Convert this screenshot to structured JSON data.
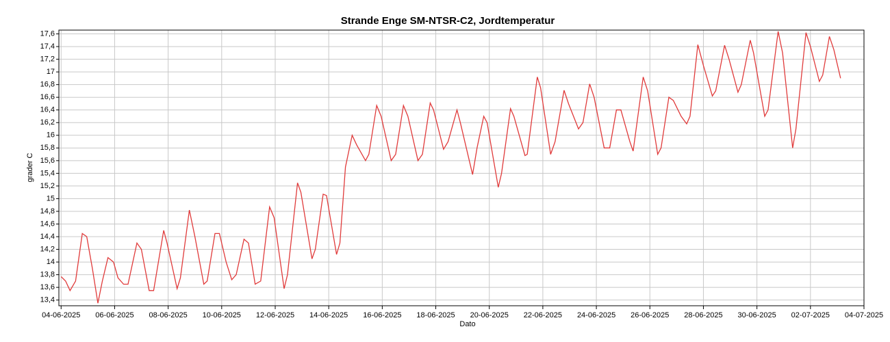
{
  "chart_data": {
    "type": "line",
    "title": "Strande Enge SM-NTSR-C2, Jordtemperatur",
    "x_label": "Dato",
    "y_label": "grader C",
    "grid": true,
    "x": [
      "2025-06-04T00:00",
      "2025-06-04T04:00",
      "2025-06-04T08:00",
      "2025-06-04T13:00",
      "2025-06-04T19:00",
      "2025-06-04T23:00",
      "2025-06-05T04:00",
      "2025-06-05T09:00",
      "2025-06-05T13:00",
      "2025-06-05T18:00",
      "2025-06-05T23:00",
      "2025-06-06T03:00",
      "2025-06-06T08:00",
      "2025-06-06T12:00",
      "2025-06-06T20:00",
      "2025-06-07T00:00",
      "2025-06-07T07:00",
      "2025-06-07T11:00",
      "2025-06-07T20:00",
      "2025-06-07T23:00",
      "2025-06-08T08:00",
      "2025-06-08T11:00",
      "2025-06-08T19:00",
      "2025-06-09T00:00",
      "2025-06-09T08:00",
      "2025-06-09T11:00",
      "2025-06-09T18:00",
      "2025-06-09T22:00",
      "2025-06-10T04:00",
      "2025-06-10T09:00",
      "2025-06-10T13:00",
      "2025-06-10T20:00",
      "2025-06-11T00:00",
      "2025-06-11T06:00",
      "2025-06-11T11:00",
      "2025-06-11T19:00",
      "2025-06-11T23:00",
      "2025-06-12T08:00",
      "2025-06-12T11:00",
      "2025-06-12T20:00",
      "2025-06-12T23:00",
      "2025-06-13T09:00",
      "2025-06-13T12:00",
      "2025-06-13T19:00",
      "2025-06-13T22:00",
      "2025-06-14T07:00",
      "2025-06-14T10:00",
      "2025-06-14T15:00",
      "2025-06-14T21:00",
      "2025-06-15T01:00",
      "2025-06-15T09:00",
      "2025-06-15T12:00",
      "2025-06-15T19:00",
      "2025-06-15T23:00",
      "2025-06-16T08:00",
      "2025-06-16T12:00",
      "2025-06-16T19:00",
      "2025-06-16T23:00",
      "2025-06-17T08:00",
      "2025-06-17T12:00",
      "2025-06-17T19:00",
      "2025-06-17T22:00",
      "2025-06-18T07:00",
      "2025-06-18T11:00",
      "2025-06-18T19:00",
      "2025-06-18T22:00",
      "2025-06-19T09:00",
      "2025-06-19T13:00",
      "2025-06-19T19:00",
      "2025-06-19T22:00",
      "2025-06-20T08:00",
      "2025-06-20T11:00",
      "2025-06-20T19:00",
      "2025-06-20T22:00",
      "2025-06-21T08:00",
      "2025-06-21T10:00",
      "2025-06-21T19:00",
      "2025-06-21T22:00",
      "2025-06-22T07:00",
      "2025-06-22T11:00",
      "2025-06-22T19:00",
      "2025-06-22T23:00",
      "2025-06-23T08:00",
      "2025-06-23T12:00",
      "2025-06-23T18:00",
      "2025-06-23T22:00",
      "2025-06-24T07:00",
      "2025-06-24T12:00",
      "2025-06-24T18:00",
      "2025-06-24T22:00",
      "2025-06-25T06:00",
      "2025-06-25T09:00",
      "2025-06-25T18:00",
      "2025-06-25T22:00",
      "2025-06-26T07:00",
      "2025-06-26T10:00",
      "2025-06-26T17:00",
      "2025-06-26T21:00",
      "2025-06-27T04:00",
      "2025-06-27T09:00",
      "2025-06-27T12:00",
      "2025-06-27T19:00",
      "2025-06-28T00:00",
      "2025-06-28T08:00",
      "2025-06-28T11:00",
      "2025-06-28T19:00",
      "2025-06-28T23:00",
      "2025-06-29T07:00",
      "2025-06-29T10:00",
      "2025-06-29T18:00",
      "2025-06-29T21:00",
      "2025-06-30T07:00",
      "2025-06-30T10:00",
      "2025-06-30T19:00",
      "2025-06-30T23:00",
      "2025-07-01T08:00",
      "2025-07-01T11:00",
      "2025-07-01T20:00",
      "2025-07-02T00:00",
      "2025-07-02T08:00",
      "2025-07-02T11:00",
      "2025-07-02T17:00",
      "2025-07-02T21:00",
      "2025-07-03T03:00"
    ],
    "series": [
      {
        "color": "#e03a3a",
        "values": [
          13.77,
          13.7,
          13.55,
          13.7,
          14.45,
          14.4,
          13.9,
          13.35,
          13.7,
          14.07,
          14.0,
          13.75,
          13.65,
          13.65,
          14.3,
          14.2,
          13.55,
          13.55,
          14.5,
          14.3,
          13.58,
          13.75,
          14.82,
          14.4,
          13.65,
          13.7,
          14.45,
          14.45,
          14.0,
          13.72,
          13.8,
          14.36,
          14.3,
          13.65,
          13.7,
          14.87,
          14.7,
          13.58,
          13.8,
          15.25,
          15.1,
          14.05,
          14.2,
          15.07,
          15.05,
          14.12,
          14.3,
          15.5,
          16.0,
          15.85,
          15.6,
          15.7,
          16.47,
          16.3,
          15.6,
          15.7,
          16.47,
          16.3,
          15.6,
          15.7,
          16.51,
          16.4,
          15.78,
          15.9,
          16.4,
          16.2,
          15.38,
          15.8,
          16.3,
          16.2,
          15.18,
          15.4,
          16.42,
          16.3,
          15.68,
          15.7,
          16.92,
          16.75,
          15.7,
          15.9,
          16.71,
          16.5,
          16.1,
          16.2,
          16.81,
          16.6,
          15.8,
          15.8,
          16.4,
          16.4,
          15.9,
          15.75,
          16.92,
          16.7,
          15.7,
          15.8,
          16.6,
          16.55,
          16.3,
          16.18,
          16.3,
          17.43,
          17.1,
          16.62,
          16.7,
          17.42,
          17.2,
          16.68,
          16.8,
          17.5,
          17.3,
          16.3,
          16.4,
          17.64,
          17.3,
          15.8,
          16.1,
          17.62,
          17.4,
          16.85,
          16.95,
          17.56,
          17.35,
          16.9
        ]
      }
    ],
    "xlim": [
      "2025-06-03T22:00",
      "2025-07-04T00:00"
    ],
    "xticks": [
      {
        "value": "2025-06-04T00:00",
        "label": "04-06-2025"
      },
      {
        "value": "2025-06-06T00:00",
        "label": "06-06-2025"
      },
      {
        "value": "2025-06-08T00:00",
        "label": "08-06-2025"
      },
      {
        "value": "2025-06-10T00:00",
        "label": "10-06-2025"
      },
      {
        "value": "2025-06-12T00:00",
        "label": "12-06-2025"
      },
      {
        "value": "2025-06-14T00:00",
        "label": "14-06-2025"
      },
      {
        "value": "2025-06-16T00:00",
        "label": "16-06-2025"
      },
      {
        "value": "2025-06-18T00:00",
        "label": "18-06-2025"
      },
      {
        "value": "2025-06-20T00:00",
        "label": "20-06-2025"
      },
      {
        "value": "2025-06-22T00:00",
        "label": "22-06-2025"
      },
      {
        "value": "2025-06-24T00:00",
        "label": "24-06-2025"
      },
      {
        "value": "2025-06-26T00:00",
        "label": "26-06-2025"
      },
      {
        "value": "2025-06-28T00:00",
        "label": "28-06-2025"
      },
      {
        "value": "2025-06-30T00:00",
        "label": "30-06-2025"
      },
      {
        "value": "2025-07-02T00:00",
        "label": "02-07-2025"
      },
      {
        "value": "2025-07-04T00:00",
        "label": "04-07-2025"
      }
    ],
    "ylim": [
      13.31,
      17.66
    ],
    "yticks": [
      {
        "value": 13.4,
        "label": "13,4"
      },
      {
        "value": 13.6,
        "label": "13,6"
      },
      {
        "value": 13.8,
        "label": "13,8"
      },
      14,
      {
        "value": 14.2,
        "label": "14,2"
      },
      {
        "value": 14.4,
        "label": "14,4"
      },
      {
        "value": 14.6,
        "label": "14,6"
      },
      {
        "value": 14.8,
        "label": "14,8"
      },
      15,
      {
        "value": 15.2,
        "label": "15,2"
      },
      {
        "value": 15.4,
        "label": "15,4"
      },
      {
        "value": 15.6,
        "label": "15,6"
      },
      {
        "value": 15.8,
        "label": "15,8"
      },
      16,
      {
        "value": 16.2,
        "label": "16,2"
      },
      {
        "value": 16.4,
        "label": "16,4"
      },
      {
        "value": 16.6,
        "label": "16,6"
      },
      {
        "value": 16.8,
        "label": "16,8"
      },
      17,
      {
        "value": 17.2,
        "label": "17,2"
      },
      {
        "value": 17.4,
        "label": "17,4"
      },
      {
        "value": 17.6,
        "label": "17,6"
      }
    ]
  }
}
